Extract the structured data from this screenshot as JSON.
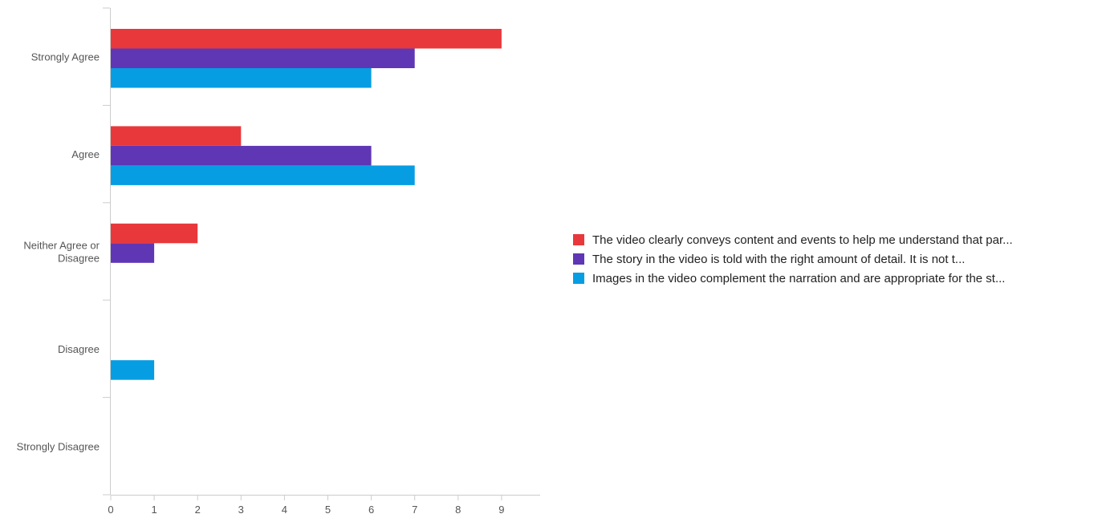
{
  "chart_data": {
    "type": "bar",
    "orientation": "horizontal",
    "categories": [
      "Strongly Agree",
      "Agree",
      "Neither Agree or Disagree",
      "Disagree",
      "Strongly Disagree"
    ],
    "category_lines": [
      [
        "Strongly Agree"
      ],
      [
        "Agree"
      ],
      [
        "Neither Agree or",
        "Disagree"
      ],
      [
        "Disagree"
      ],
      [
        "Strongly Disagree"
      ]
    ],
    "series": [
      {
        "name": "The video clearly conveys content and events to help me understand that par...",
        "color": "#e8383b",
        "values": [
          9,
          3,
          2,
          0,
          0
        ]
      },
      {
        "name": "The story in the video is told with the right amount of detail. It is not t...",
        "color": "#5f37b4",
        "values": [
          7,
          6,
          1,
          0,
          0
        ]
      },
      {
        "name": "Images in the video complement the narration and are appropriate for the st...",
        "color": "#069de3",
        "values": [
          6,
          7,
          0,
          1,
          0
        ]
      }
    ],
    "xlim": [
      0,
      10
    ],
    "xticks": [
      0,
      1,
      2,
      3,
      4,
      5,
      6,
      7,
      8,
      9
    ],
    "grid": false,
    "legend_position": "right"
  }
}
